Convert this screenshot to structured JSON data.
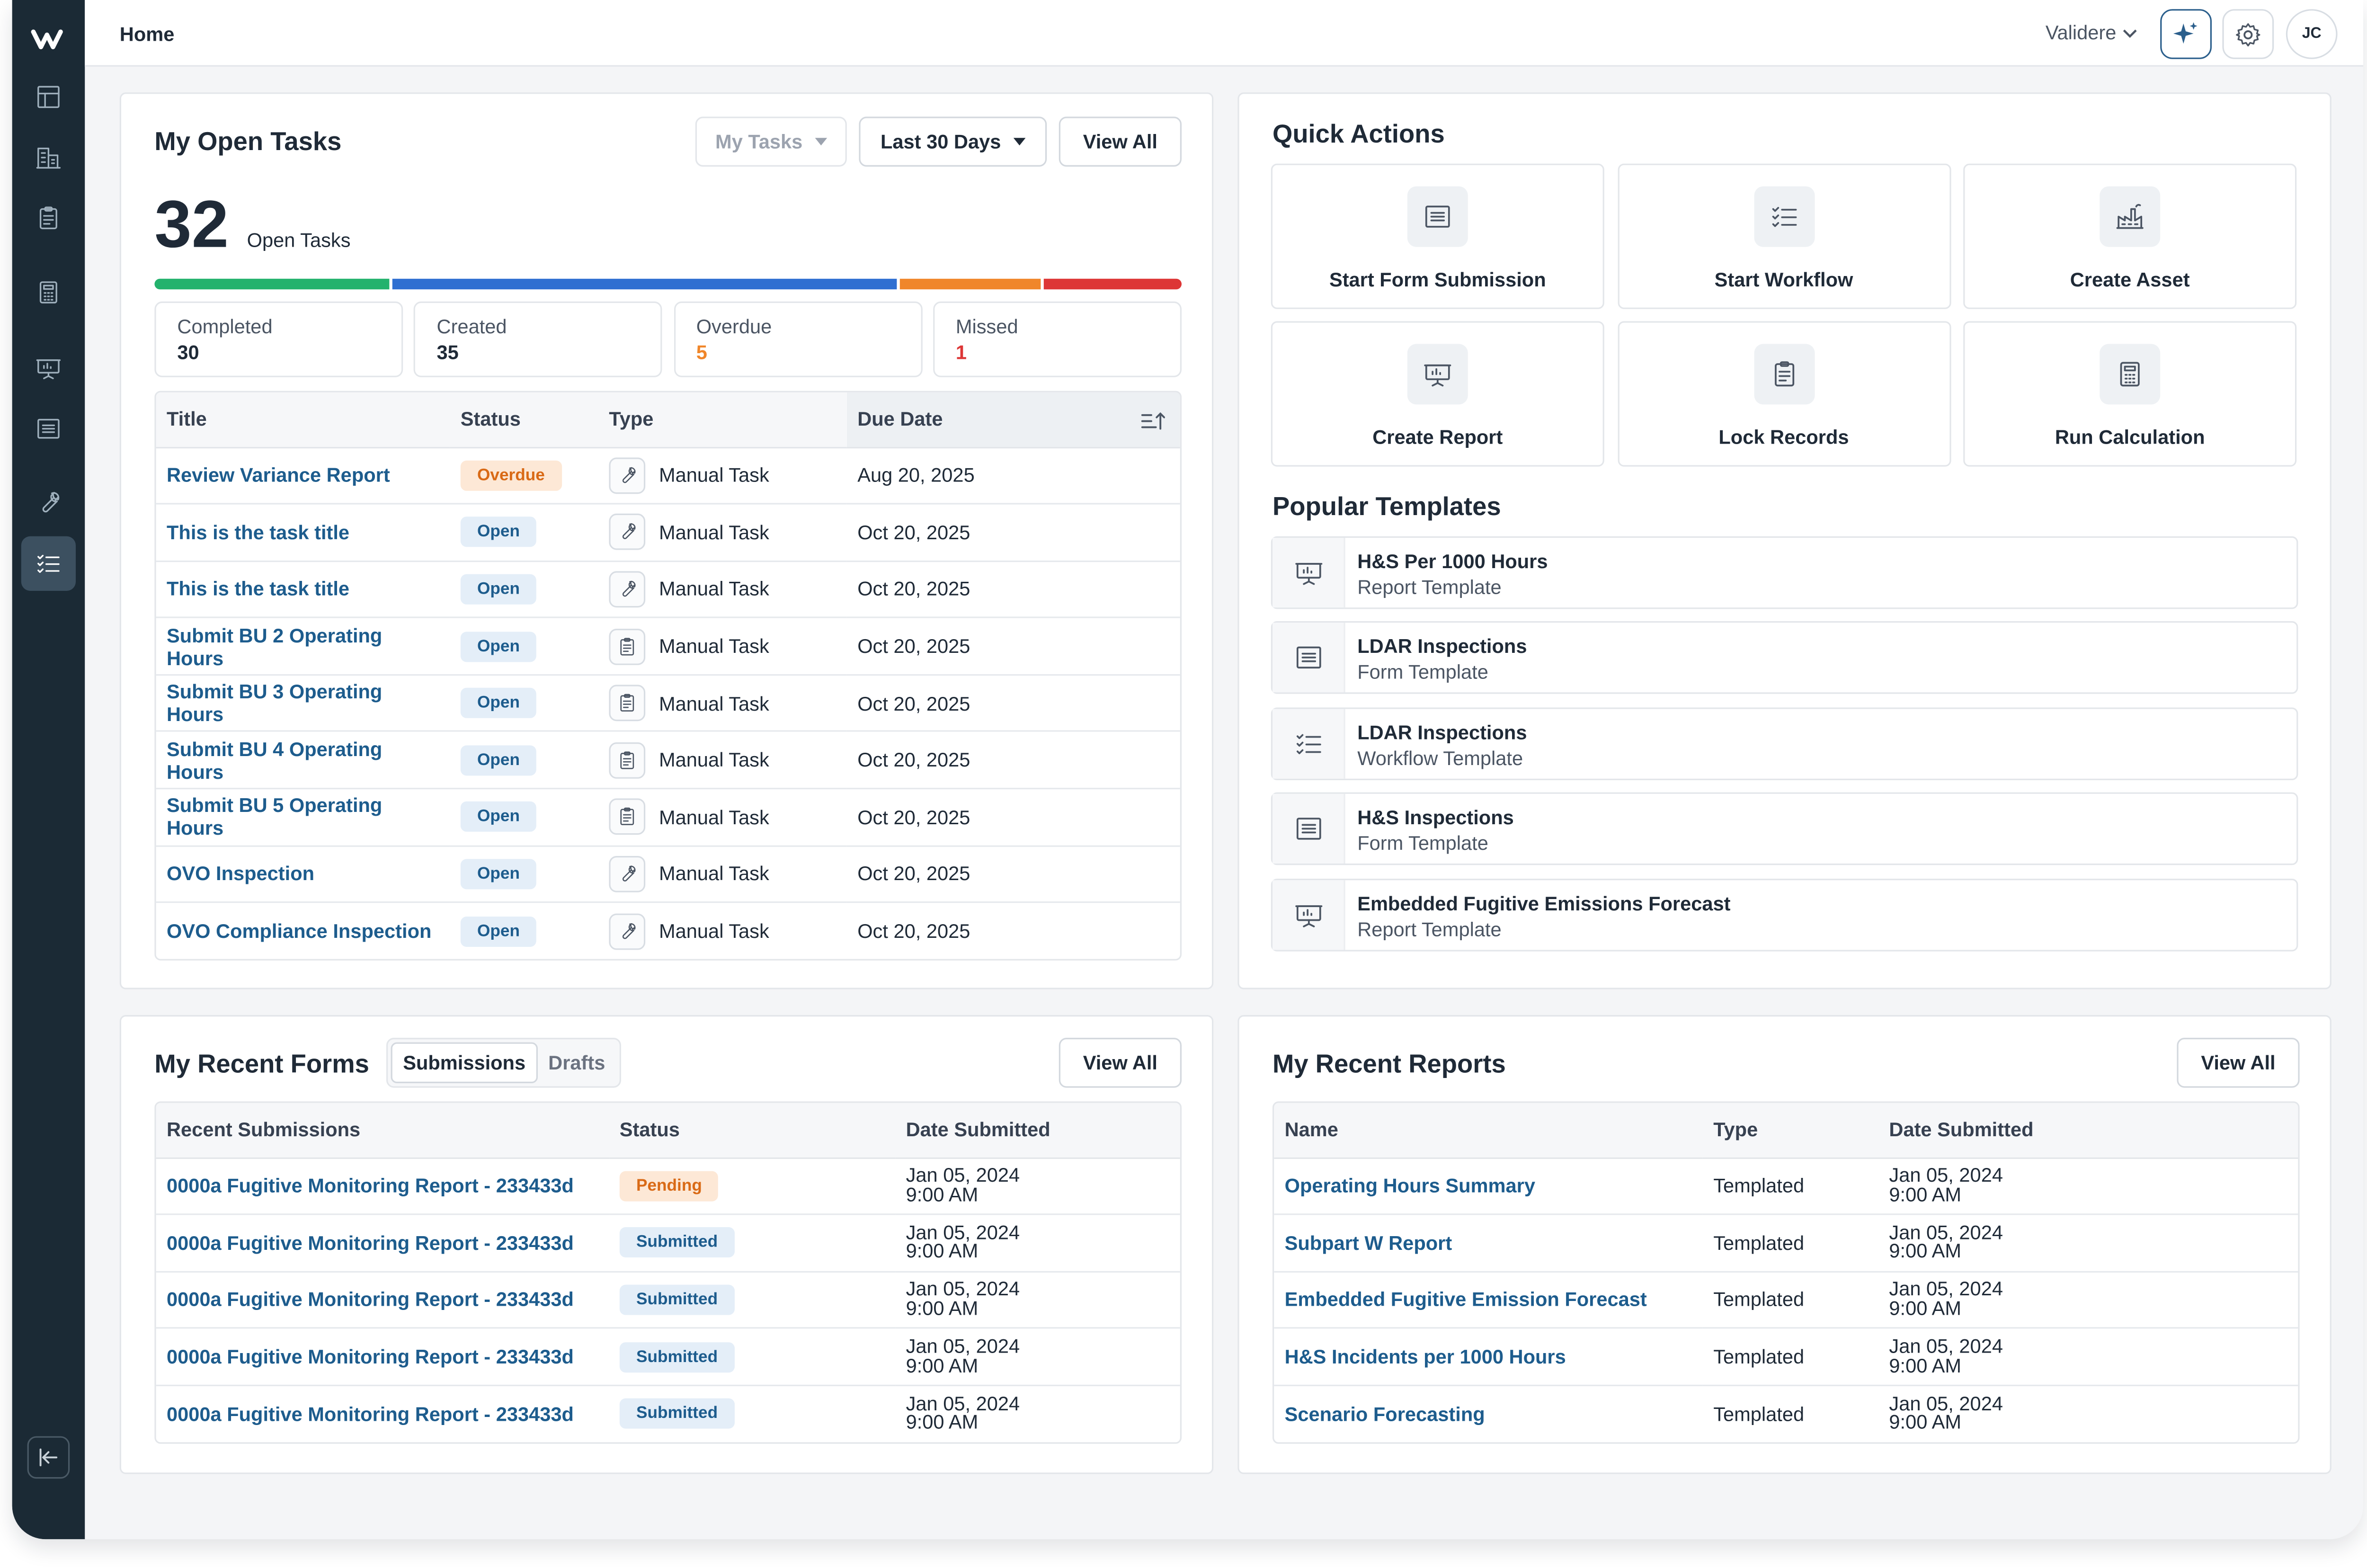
{
  "app": {
    "page_title": "Home",
    "company": "Validere",
    "user_initials": "JC"
  },
  "colors": {
    "sidebar_bg": "#1b2a35",
    "accent": "#1d5c8d",
    "completed": "#23b26d",
    "created": "#2f6fd1",
    "overdue": "#f0862a",
    "missed": "#dd3636"
  },
  "sidebar": {
    "items": [
      {
        "icon": "layout-icon"
      },
      {
        "icon": "buildings-icon"
      },
      {
        "icon": "clipboard-icon"
      },
      {
        "icon": "calculator-icon"
      },
      {
        "icon": "presentation-icon"
      },
      {
        "icon": "form-icon"
      },
      {
        "icon": "wrench-icon"
      },
      {
        "icon": "checklist-icon",
        "active": true
      }
    ],
    "collapse_icon": "collapse-sidebar-icon"
  },
  "tasks": {
    "title": "My Open Tasks",
    "filter_owner": "My Tasks",
    "filter_range": "Last 30 Days",
    "view_all": "View All",
    "count": "32",
    "count_label": "Open Tasks",
    "progress": [
      {
        "key": "completed",
        "fraction": 0.231
      },
      {
        "key": "created",
        "fraction": 0.495
      },
      {
        "key": "overdue",
        "fraction": 0.138
      },
      {
        "key": "missed",
        "fraction": 0.136
      }
    ],
    "stats": [
      {
        "label": "Completed",
        "value": "30",
        "color": "#1f2a37"
      },
      {
        "label": "Created",
        "value": "35",
        "color": "#1f2a37"
      },
      {
        "label": "Overdue",
        "value": "5",
        "color": "#f0862a"
      },
      {
        "label": "Missed",
        "value": "1",
        "color": "#dd3636"
      }
    ],
    "columns": [
      "Title",
      "Status",
      "Type",
      "Due Date"
    ],
    "rows": [
      {
        "title": "Review Variance Report",
        "status": "Overdue",
        "type": "Manual Task",
        "icon": "wrench-icon",
        "due": "Aug 20, 2025"
      },
      {
        "title": "This is the task title",
        "status": "Open",
        "type": "Manual Task",
        "icon": "wrench-icon",
        "due": "Oct 20, 2025"
      },
      {
        "title": "This is the task title",
        "status": "Open",
        "type": "Manual Task",
        "icon": "wrench-icon",
        "due": "Oct 20, 2025"
      },
      {
        "title": "Submit BU 2 Operating Hours",
        "status": "Open",
        "type": "Manual Task",
        "icon": "clipboard-icon",
        "due": "Oct 20, 2025"
      },
      {
        "title": "Submit BU 3 Operating Hours",
        "status": "Open",
        "type": "Manual Task",
        "icon": "clipboard-icon",
        "due": "Oct 20, 2025"
      },
      {
        "title": "Submit BU 4 Operating Hours",
        "status": "Open",
        "type": "Manual Task",
        "icon": "clipboard-icon",
        "due": "Oct 20, 2025"
      },
      {
        "title": "Submit BU 5 Operating Hours",
        "status": "Open",
        "type": "Manual Task",
        "icon": "clipboard-icon",
        "due": "Oct 20, 2025"
      },
      {
        "title": "OVO Inspection",
        "status": "Open",
        "type": "Manual Task",
        "icon": "wrench-icon",
        "due": "Oct 20, 2025"
      },
      {
        "title": "OVO Compliance Inspection",
        "status": "Open",
        "type": "Manual Task",
        "icon": "wrench-icon",
        "due": "Oct 20, 2025"
      }
    ]
  },
  "quick_actions": {
    "title": "Quick Actions",
    "items": [
      {
        "label": "Start Form Submission",
        "icon": "form-icon"
      },
      {
        "label": "Start Workflow",
        "icon": "checklist-icon"
      },
      {
        "label": "Create Asset",
        "icon": "factory-icon"
      },
      {
        "label": "Create Report",
        "icon": "presentation-icon"
      },
      {
        "label": "Lock Records",
        "icon": "clipboard-icon"
      },
      {
        "label": "Run Calculation",
        "icon": "calculator-icon"
      }
    ]
  },
  "templates": {
    "title": "Popular Templates",
    "items": [
      {
        "name": "H&S Per 1000 Hours",
        "kind": "Report Template",
        "icon": "presentation-icon"
      },
      {
        "name": "LDAR Inspections",
        "kind": "Form Template",
        "icon": "form-icon"
      },
      {
        "name": "LDAR Inspections",
        "kind": "Workflow Template",
        "icon": "checklist-icon"
      },
      {
        "name": "H&S Inspections",
        "kind": "Form Template",
        "icon": "form-icon"
      },
      {
        "name": "Embedded Fugitive Emissions Forecast",
        "kind": "Report Template",
        "icon": "presentation-icon"
      }
    ]
  },
  "forms": {
    "title": "My Recent Forms",
    "tab_active": "Submissions",
    "tab_inactive": "Drafts",
    "view_all": "View All",
    "columns": [
      "Recent Submissions",
      "Status",
      "Date Submitted"
    ],
    "rows": [
      {
        "name": "0000a Fugitive Monitoring Report - 233433d",
        "status": "Pending",
        "date": "Jan 05, 2024",
        "time": "9:00 AM"
      },
      {
        "name": "0000a Fugitive Monitoring Report - 233433d",
        "status": "Submitted",
        "date": "Jan 05, 2024",
        "time": "9:00 AM"
      },
      {
        "name": "0000a Fugitive Monitoring Report - 233433d",
        "status": "Submitted",
        "date": "Jan 05, 2024",
        "time": "9:00 AM"
      },
      {
        "name": "0000a Fugitive Monitoring Report - 233433d",
        "status": "Submitted",
        "date": "Jan 05, 2024",
        "time": "9:00 AM"
      },
      {
        "name": "0000a Fugitive Monitoring Report - 233433d",
        "status": "Submitted",
        "date": "Jan 05, 2024",
        "time": "9:00 AM"
      }
    ]
  },
  "reports": {
    "title": "My Recent Reports",
    "view_all": "View All",
    "columns": [
      "Name",
      "Type",
      "Date Submitted"
    ],
    "rows": [
      {
        "name": "Operating Hours Summary",
        "type": "Templated",
        "date": "Jan 05, 2024",
        "time": "9:00 AM"
      },
      {
        "name": "Subpart W Report",
        "type": "Templated",
        "date": "Jan 05, 2024",
        "time": "9:00 AM"
      },
      {
        "name": "Embedded Fugitive Emission Forecast",
        "type": "Templated",
        "date": "Jan 05, 2024",
        "time": "9:00 AM"
      },
      {
        "name": "H&S Incidents per 1000 Hours",
        "type": "Templated",
        "date": "Jan 05, 2024",
        "time": "9:00 AM"
      },
      {
        "name": "Scenario Forecasting",
        "type": "Templated",
        "date": "Jan 05, 2024",
        "time": "9:00 AM"
      }
    ]
  }
}
